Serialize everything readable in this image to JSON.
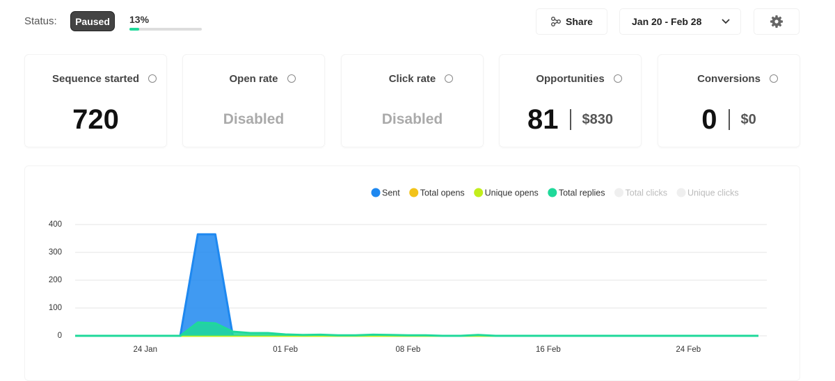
{
  "status": {
    "label": "Status:",
    "badge": "Paused",
    "progress": {
      "value": 13,
      "label": "13%"
    }
  },
  "actions": {
    "share": "Share",
    "date_range": "Jan 20 - Feb 28"
  },
  "cards": [
    {
      "title": "Sequence started",
      "values": [
        "720"
      ]
    },
    {
      "title": "Open rate",
      "values": [
        "Disabled"
      ],
      "disabled": true
    },
    {
      "title": "Click rate",
      "values": [
        "Disabled"
      ],
      "disabled": true
    },
    {
      "title": "Opportunities",
      "values": [
        "81",
        "$830"
      ]
    },
    {
      "title": "Conversions",
      "values": [
        "0",
        "$0"
      ]
    }
  ],
  "chart_data": {
    "type": "area",
    "categories": [
      null,
      null,
      null,
      null,
      "24 Jan",
      null,
      null,
      null,
      null,
      null,
      null,
      null,
      "01 Feb",
      null,
      null,
      null,
      null,
      null,
      null,
      "08 Feb",
      null,
      null,
      null,
      null,
      null,
      null,
      null,
      "16 Feb",
      null,
      null,
      null,
      null,
      null,
      null,
      null,
      "24 Feb",
      null,
      null,
      null,
      null
    ],
    "series": [
      {
        "name": "Sent",
        "color": "#1e88f0",
        "values": [
          0,
          0,
          0,
          0,
          0,
          0,
          0,
          365,
          365,
          0,
          0,
          0,
          0,
          0,
          0,
          0,
          0,
          0,
          0,
          0,
          0,
          0,
          0,
          0,
          0,
          0,
          0,
          0,
          0,
          0,
          0,
          0,
          0,
          0,
          0,
          0,
          0,
          0,
          0,
          0
        ]
      },
      {
        "name": "Total opens",
        "color": "#f2c31a",
        "values": [
          0,
          0,
          0,
          0,
          0,
          0,
          0,
          0,
          0,
          0,
          0,
          0,
          0,
          0,
          0,
          0,
          0,
          0,
          0,
          0,
          0,
          0,
          0,
          0,
          0,
          0,
          0,
          0,
          0,
          0,
          0,
          0,
          0,
          0,
          0,
          0,
          0,
          0,
          0,
          0
        ]
      },
      {
        "name": "Unique opens",
        "color": "#c2ee1c",
        "values": [
          0,
          0,
          0,
          0,
          0,
          0,
          0,
          0,
          0,
          0,
          0,
          0,
          0,
          0,
          0,
          0,
          0,
          0,
          0,
          0,
          0,
          0,
          0,
          0,
          0,
          0,
          0,
          0,
          0,
          0,
          0,
          0,
          0,
          0,
          0,
          0,
          0,
          0,
          0,
          0
        ]
      },
      {
        "name": "Total replies",
        "color": "#1fd99a",
        "values": [
          0,
          0,
          0,
          0,
          0,
          0,
          0,
          48,
          45,
          15,
          10,
          10,
          5,
          3,
          4,
          2,
          2,
          4,
          3,
          2,
          2,
          0,
          0,
          3,
          0,
          0,
          0,
          0,
          0,
          0,
          0,
          0,
          0,
          0,
          0,
          0,
          0,
          0,
          0,
          0
        ]
      },
      {
        "name": "Total clicks",
        "color": "#efefef",
        "hidden": true,
        "values": [
          null,
          null,
          null,
          null,
          null,
          null,
          null,
          null,
          null,
          null,
          null,
          null,
          null,
          null,
          null,
          null,
          null,
          null,
          null,
          null,
          null,
          null,
          null,
          null,
          null,
          null,
          null,
          null,
          null,
          null,
          null,
          null,
          null,
          null,
          null,
          null,
          null,
          null,
          null,
          null
        ]
      },
      {
        "name": "Unique clicks",
        "color": "#efefef",
        "hidden": true,
        "values": [
          null,
          null,
          null,
          null,
          null,
          null,
          null,
          null,
          null,
          null,
          null,
          null,
          null,
          null,
          null,
          null,
          null,
          null,
          null,
          null,
          null,
          null,
          null,
          null,
          null,
          null,
          null,
          null,
          null,
          null,
          null,
          null,
          null,
          null,
          null,
          null,
          null,
          null,
          null,
          null
        ]
      }
    ],
    "ylim": [
      0,
      400
    ],
    "yticks": [
      0,
      100,
      200,
      300,
      400
    ],
    "grid": true
  }
}
